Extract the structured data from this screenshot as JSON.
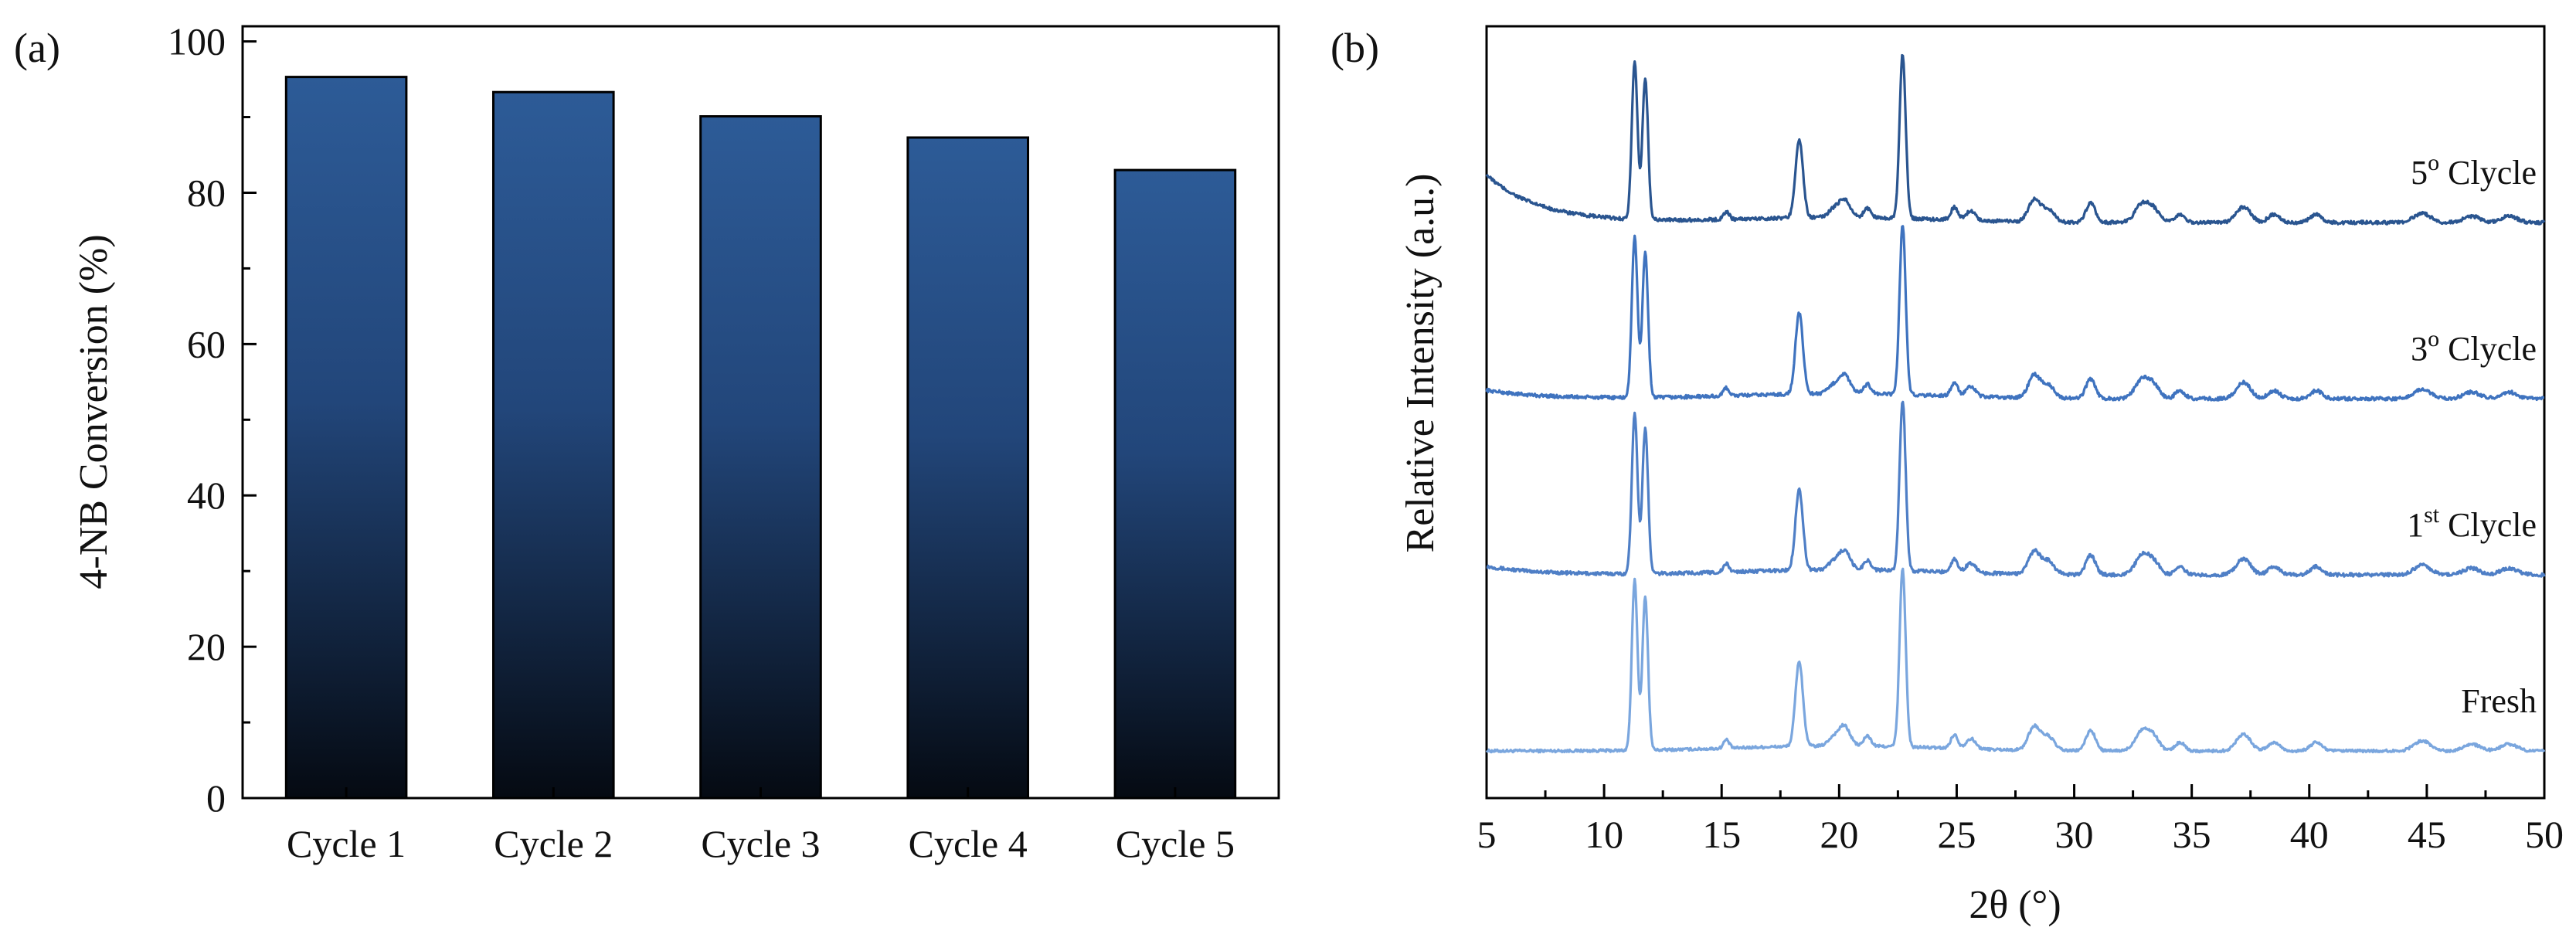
{
  "figure": {
    "panel_a_label": "(a)",
    "panel_b_label": "(b)"
  },
  "colors": {
    "bar_top": "#2d5b97",
    "bar_bottom": "#050a12",
    "axis": "#000000",
    "trace_fresh": "#7aa6de",
    "trace_1st": "#4f7fc6",
    "trace_3rd": "#3f73bf",
    "trace_5th": "#2a5590"
  },
  "chart_data": [
    {
      "type": "bar",
      "panel": "(a)",
      "title": "",
      "categories": [
        "Cycle 1",
        "Cycle 2",
        "Cycle 3",
        "Cycle 4",
        "Cycle 5"
      ],
      "values": [
        95.3,
        93.3,
        90.1,
        87.3,
        83.0
      ],
      "xlabel": "",
      "ylabel": "4-NB Conversion (%)",
      "ylim": [
        0,
        102
      ],
      "yticks": [
        0,
        20,
        40,
        60,
        80,
        100
      ],
      "grid": false,
      "legend": "none"
    },
    {
      "type": "line",
      "panel": "(b)",
      "title": "",
      "xlabel": "2θ (°)",
      "ylabel": "Relative Intensity (a.u.)",
      "xlim": [
        5,
        50
      ],
      "xticks": [
        5,
        10,
        15,
        20,
        25,
        30,
        35,
        40,
        45,
        50
      ],
      "y_ticks_shown": false,
      "legend": "inline-right",
      "peaks": [
        {
          "pos": 11.3,
          "h": 1.0,
          "w": 0.12
        },
        {
          "pos": 11.75,
          "h": 0.9,
          "w": 0.12
        },
        {
          "pos": 15.2,
          "h": 0.05,
          "w": 0.12
        },
        {
          "pos": 18.3,
          "h": 0.5,
          "w": 0.16
        },
        {
          "pos": 19.7,
          "h": 0.04,
          "w": 0.2
        },
        {
          "pos": 20.2,
          "h": 0.12,
          "w": 0.25
        },
        {
          "pos": 21.2,
          "h": 0.06,
          "w": 0.15
        },
        {
          "pos": 22.7,
          "h": 1.05,
          "w": 0.13
        },
        {
          "pos": 24.9,
          "h": 0.08,
          "w": 0.15
        },
        {
          "pos": 25.6,
          "h": 0.06,
          "w": 0.2
        },
        {
          "pos": 28.3,
          "h": 0.14,
          "w": 0.25
        },
        {
          "pos": 28.9,
          "h": 0.08,
          "w": 0.25
        },
        {
          "pos": 30.7,
          "h": 0.12,
          "w": 0.2
        },
        {
          "pos": 32.9,
          "h": 0.12,
          "w": 0.3
        },
        {
          "pos": 33.4,
          "h": 0.07,
          "w": 0.25
        },
        {
          "pos": 34.5,
          "h": 0.05,
          "w": 0.2
        },
        {
          "pos": 37.2,
          "h": 0.1,
          "w": 0.3
        },
        {
          "pos": 38.5,
          "h": 0.05,
          "w": 0.25
        },
        {
          "pos": 40.3,
          "h": 0.05,
          "w": 0.25
        },
        {
          "pos": 44.8,
          "h": 0.06,
          "w": 0.35
        },
        {
          "pos": 46.9,
          "h": 0.04,
          "w": 0.35
        },
        {
          "pos": 48.5,
          "h": 0.04,
          "w": 0.35
        }
      ],
      "series": [
        {
          "name": "Fresh",
          "label_text": "Fresh",
          "label_sup": "",
          "offset": 0.0,
          "scale": 1.0,
          "low_angle_rise": 0.0,
          "noise": 0.008,
          "color_key": "trace_fresh"
        },
        {
          "name": "1st Clycle",
          "label_text": "1",
          "label_sup": "st",
          "label_rest": " Clycle",
          "offset": 1.0,
          "scale": 0.95,
          "low_angle_rise": 0.05,
          "noise": 0.01,
          "color_key": "trace_1st"
        },
        {
          "name": "3o Clycle",
          "label_text": "3",
          "label_sup": "o",
          "label_rest": " Clycle",
          "offset": 2.0,
          "scale": 0.95,
          "low_angle_rise": 0.05,
          "noise": 0.01,
          "color_key": "trace_3rd"
        },
        {
          "name": "5o Clycle",
          "label_text": "5",
          "label_sup": "o",
          "label_rest": " Clycle",
          "offset": 3.0,
          "scale": 0.92,
          "low_angle_rise": 0.28,
          "noise": 0.01,
          "color_key": "trace_5th"
        }
      ]
    }
  ]
}
